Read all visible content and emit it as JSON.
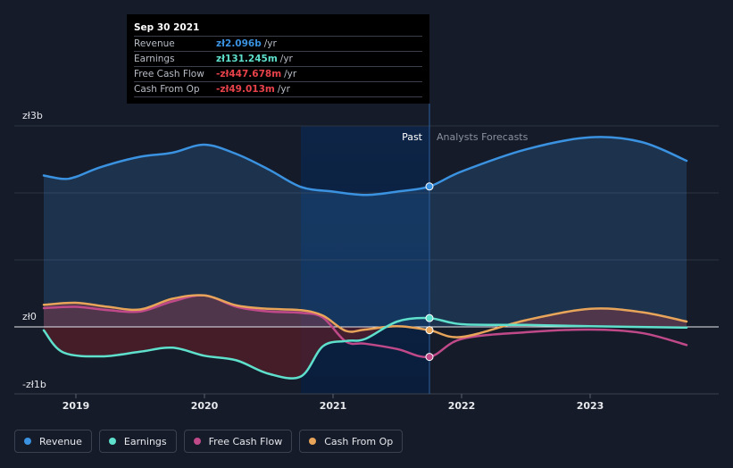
{
  "chart_data": {
    "type": "line",
    "y_axis": {
      "ylim": [
        -1,
        3
      ],
      "ticks": [
        {
          "value": 3,
          "label": "zł3b"
        },
        {
          "value": 0,
          "label": "zł0"
        },
        {
          "value": -1,
          "label": "-zł1b"
        }
      ]
    },
    "x_axis": {
      "ticks": [
        {
          "value": 2019,
          "label": "2019"
        },
        {
          "value": 2020,
          "label": "2020"
        },
        {
          "value": 2021,
          "label": "2021"
        },
        {
          "value": 2022,
          "label": "2022"
        },
        {
          "value": 2023,
          "label": "2023"
        }
      ]
    },
    "regions": {
      "past_label": "Past",
      "forecast_label": "Analysts Forecasts",
      "divider_x": 2021.75
    },
    "series": [
      {
        "name": "Revenue",
        "color": "#3a92e0",
        "points": [
          [
            2018.75,
            2.26
          ],
          [
            2018.9,
            2.21
          ],
          [
            2019.0,
            2.24
          ],
          [
            2019.2,
            2.39
          ],
          [
            2019.5,
            2.54
          ],
          [
            2019.75,
            2.6
          ],
          [
            2020.0,
            2.72
          ],
          [
            2020.25,
            2.58
          ],
          [
            2020.5,
            2.35
          ],
          [
            2020.75,
            2.09
          ],
          [
            2021.0,
            2.02
          ],
          [
            2021.25,
            1.97
          ],
          [
            2021.5,
            2.02
          ],
          [
            2021.75,
            2.096
          ],
          [
            2022.0,
            2.32
          ],
          [
            2022.5,
            2.65
          ],
          [
            2023.0,
            2.83
          ],
          [
            2023.4,
            2.76
          ],
          [
            2023.75,
            2.48
          ]
        ],
        "end_point": [
          2021.75,
          2.096
        ]
      },
      {
        "name": "Earnings",
        "color": "#5ee0cc",
        "points": [
          [
            2018.75,
            -0.05
          ],
          [
            2018.9,
            -0.38
          ],
          [
            2019.2,
            -0.44
          ],
          [
            2019.5,
            -0.37
          ],
          [
            2019.75,
            -0.31
          ],
          [
            2020.0,
            -0.43
          ],
          [
            2020.25,
            -0.5
          ],
          [
            2020.5,
            -0.7
          ],
          [
            2020.75,
            -0.74
          ],
          [
            2020.92,
            -0.29
          ],
          [
            2021.1,
            -0.21
          ],
          [
            2021.25,
            -0.18
          ],
          [
            2021.5,
            0.08
          ],
          [
            2021.75,
            0.131
          ],
          [
            2022.0,
            0.04
          ],
          [
            2022.5,
            0.03
          ],
          [
            2023.0,
            0.01
          ],
          [
            2023.75,
            -0.01
          ]
        ],
        "end_point": [
          2021.75,
          0.131
        ]
      },
      {
        "name": "Free Cash Flow",
        "color": "#c0498a",
        "points": [
          [
            2018.75,
            0.28
          ],
          [
            2019.0,
            0.3
          ],
          [
            2019.25,
            0.25
          ],
          [
            2019.5,
            0.23
          ],
          [
            2019.75,
            0.38
          ],
          [
            2020.0,
            0.47
          ],
          [
            2020.25,
            0.3
          ],
          [
            2020.5,
            0.23
          ],
          [
            2020.75,
            0.21
          ],
          [
            2020.92,
            0.14
          ],
          [
            2021.1,
            -0.22
          ],
          [
            2021.25,
            -0.25
          ],
          [
            2021.5,
            -0.33
          ],
          [
            2021.75,
            -0.448
          ],
          [
            2022.0,
            -0.18
          ],
          [
            2022.5,
            -0.08
          ],
          [
            2023.0,
            -0.04
          ],
          [
            2023.4,
            -0.09
          ],
          [
            2023.75,
            -0.27
          ]
        ],
        "end_point": [
          2021.75,
          -0.448
        ]
      },
      {
        "name": "Cash From Op",
        "color": "#e8a55a",
        "points": [
          [
            2018.75,
            0.33
          ],
          [
            2019.0,
            0.36
          ],
          [
            2019.25,
            0.3
          ],
          [
            2019.5,
            0.26
          ],
          [
            2019.75,
            0.42
          ],
          [
            2020.0,
            0.47
          ],
          [
            2020.25,
            0.32
          ],
          [
            2020.5,
            0.27
          ],
          [
            2020.75,
            0.25
          ],
          [
            2020.92,
            0.17
          ],
          [
            2021.1,
            -0.06
          ],
          [
            2021.25,
            -0.04
          ],
          [
            2021.5,
            0.01
          ],
          [
            2021.75,
            -0.049
          ],
          [
            2022.0,
            -0.15
          ],
          [
            2022.5,
            0.1
          ],
          [
            2023.0,
            0.27
          ],
          [
            2023.4,
            0.22
          ],
          [
            2023.75,
            0.08
          ]
        ],
        "end_point": [
          2021.75,
          -0.049
        ]
      }
    ],
    "legend": {
      "placement": "bottom-left",
      "items": [
        {
          "name": "Revenue",
          "color": "#3a92e0"
        },
        {
          "name": "Earnings",
          "color": "#5ee0cc"
        },
        {
          "name": "Free Cash Flow",
          "color": "#c0498a"
        },
        {
          "name": "Cash From Op",
          "color": "#e8a55a"
        }
      ]
    },
    "tooltip": {
      "date": "Sep 30 2021",
      "rows": [
        {
          "label": "Revenue",
          "value": "zł2.096b",
          "unit": "/yr",
          "color": "#3a92e0"
        },
        {
          "label": "Earnings",
          "value": "zł131.245m",
          "unit": "/yr",
          "color": "#5ee0cc"
        },
        {
          "label": "Free Cash Flow",
          "value": "-zł447.678m",
          "unit": "/yr",
          "color": "#e8424a"
        },
        {
          "label": "Cash From Op",
          "value": "-zł49.013m",
          "unit": "/yr",
          "color": "#e8424a"
        }
      ]
    }
  }
}
